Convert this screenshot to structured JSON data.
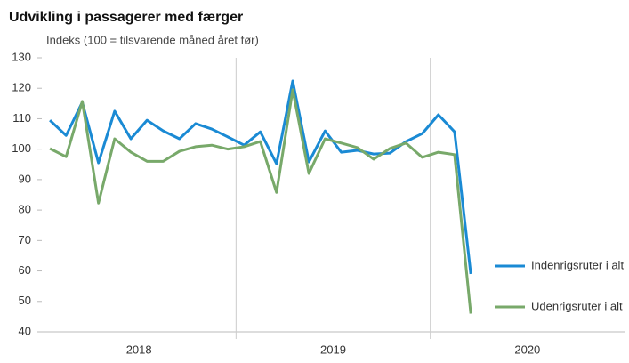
{
  "chart_data": {
    "type": "line",
    "title": "Udvikling i passagerer med færger",
    "subtitle": "Indeks (100  =  tilsvarende måned året før)",
    "categories": [
      null,
      null,
      null,
      null,
      null,
      null,
      null,
      null,
      null,
      null,
      null,
      null,
      null,
      null,
      null,
      null,
      null,
      null,
      null,
      null,
      null,
      null,
      null,
      null,
      null,
      null,
      null,
      null,
      null,
      null,
      null,
      null,
      null,
      null,
      null,
      null
    ],
    "year_labels": [
      "2018",
      "2019",
      "2020"
    ],
    "series": [
      {
        "name": "Indenrigsruter i alt",
        "color": "#1a8ad4",
        "values": [
          109.5,
          104.5,
          115.4,
          95.5,
          112.5,
          103.4,
          109.5,
          106,
          103.4,
          108.4,
          106.6,
          104,
          101.3,
          105.7,
          95.2,
          122.4,
          95.8,
          106,
          99,
          99.6,
          98.4,
          98.7,
          102.5,
          105.1,
          111.3,
          105.7,
          59,
          null,
          null,
          null,
          null,
          null,
          null,
          null,
          null,
          null
        ]
      },
      {
        "name": "Udenrigsruter i alt",
        "color": "#78a96a",
        "values": [
          100.2,
          97.5,
          115.7,
          82.3,
          103.4,
          99,
          96,
          96,
          99.3,
          100.8,
          101.3,
          100,
          100.8,
          102.5,
          85.8,
          119.5,
          92,
          103.4,
          102,
          100.5,
          96.7,
          100.2,
          102,
          97.3,
          99,
          98.2,
          46,
          null,
          null,
          null,
          null,
          null,
          null,
          null,
          null,
          null
        ]
      }
    ],
    "ylim": [
      40,
      130
    ],
    "yticks": [
      40,
      50,
      60,
      70,
      80,
      90,
      100,
      110,
      120,
      130
    ]
  }
}
